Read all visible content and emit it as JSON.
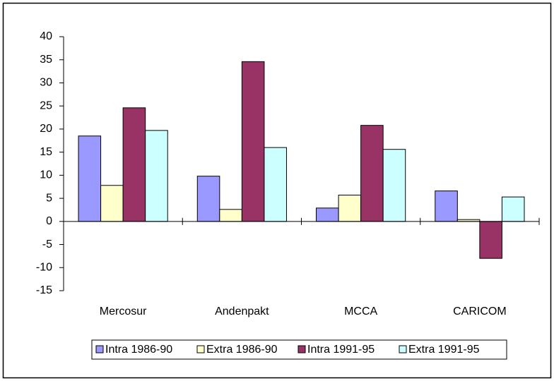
{
  "chart_data": {
    "type": "bar",
    "categories": [
      "Mercosur",
      "Andenpakt",
      "MCCA",
      "CARICOM"
    ],
    "series": [
      {
        "name": "Intra 1986-90",
        "color": "#9999ff",
        "values": [
          18.5,
          9.8,
          2.9,
          6.6
        ]
      },
      {
        "name": "Extra 1986-90",
        "color": "#ffffcc",
        "values": [
          7.8,
          2.6,
          5.7,
          0.4
        ]
      },
      {
        "name": "Intra 1991-95",
        "color": "#993366",
        "values": [
          24.6,
          34.6,
          20.8,
          -8.0
        ]
      },
      {
        "name": "Extra 1991-95",
        "color": "#ccffff",
        "values": [
          19.7,
          16.0,
          15.6,
          5.3
        ]
      }
    ],
    "ylim": [
      -15,
      40
    ],
    "yticks": [
      -15,
      -10,
      -5,
      0,
      5,
      10,
      15,
      20,
      25,
      30,
      35,
      40
    ],
    "grid": false,
    "legend": "bottom"
  }
}
